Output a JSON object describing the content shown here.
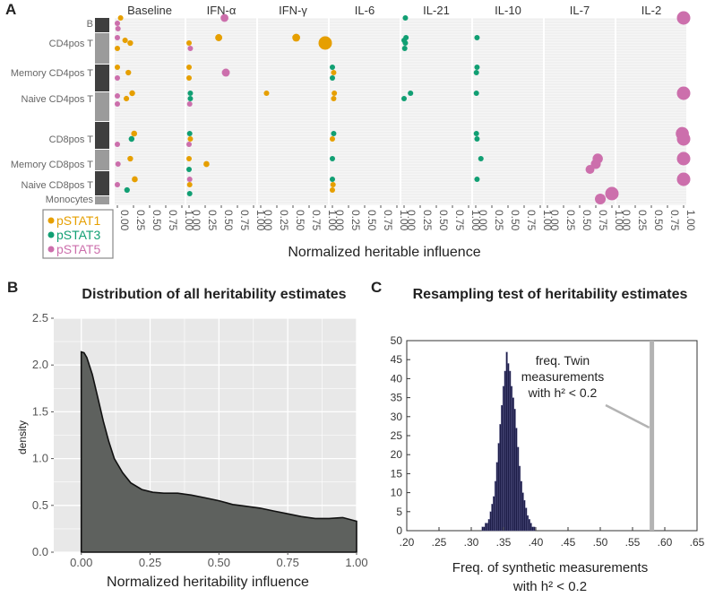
{
  "chart_data": [
    {
      "panel": "A",
      "type": "scatter",
      "facets": [
        "Baseline",
        "IFN-α",
        "IFN-γ",
        "IL-6",
        "IL-21",
        "IL-10",
        "IL-7",
        "IL-2"
      ],
      "cell_types": [
        "B",
        "CD4pos T",
        "Memory CD4pos T",
        "Naive CD4pos T",
        "CD8pos T",
        "Memory CD8pos T",
        "Naive CD8pos T",
        "Monocytes"
      ],
      "xlabel": "Normalized heritable influence",
      "xticks": [
        "0.00",
        "0.25",
        "0.50",
        "0.75",
        "1.00"
      ],
      "xlim": [
        0,
        1
      ],
      "legend": [
        {
          "name": "pSTAT1",
          "color": "#E69F00"
        },
        {
          "name": "pSTAT3",
          "color": "#119F73"
        },
        {
          "name": "pSTAT5",
          "color": "#CC6FAC"
        }
      ],
      "points": [
        {
          "facet": 0,
          "cell": 0,
          "series": "pSTAT1",
          "x": 0.05
        },
        {
          "facet": 0,
          "cell": 0,
          "series": "pSTAT5",
          "x": 0.0
        },
        {
          "facet": 0,
          "cell": 0,
          "series": "pSTAT5",
          "x": 0.01
        },
        {
          "facet": 0,
          "cell": 1,
          "series": "pSTAT5",
          "x": 0.0
        },
        {
          "facet": 0,
          "cell": 1,
          "series": "pSTAT1",
          "x": 0.2
        },
        {
          "facet": 0,
          "cell": 1,
          "series": "pSTAT1",
          "x": 0.0
        },
        {
          "facet": 0,
          "cell": 1,
          "series": "pSTAT1",
          "x": 0.12
        },
        {
          "facet": 0,
          "cell": 2,
          "series": "pSTAT1",
          "x": 0.0
        },
        {
          "facet": 0,
          "cell": 2,
          "series": "pSTAT1",
          "x": 0.17
        },
        {
          "facet": 0,
          "cell": 2,
          "series": "pSTAT5",
          "x": 0.0
        },
        {
          "facet": 0,
          "cell": 3,
          "series": "pSTAT1",
          "x": 0.23
        },
        {
          "facet": 0,
          "cell": 3,
          "series": "pSTAT1",
          "x": 0.14
        },
        {
          "facet": 0,
          "cell": 3,
          "series": "pSTAT5",
          "x": 0.0
        },
        {
          "facet": 0,
          "cell": 3,
          "series": "pSTAT5",
          "x": 0.0
        },
        {
          "facet": 0,
          "cell": 4,
          "series": "pSTAT1",
          "x": 0.26
        },
        {
          "facet": 0,
          "cell": 4,
          "series": "pSTAT3",
          "x": 0.22
        },
        {
          "facet": 0,
          "cell": 4,
          "series": "pSTAT5",
          "x": 0.0
        },
        {
          "facet": 0,
          "cell": 5,
          "series": "pSTAT1",
          "x": 0.2
        },
        {
          "facet": 0,
          "cell": 5,
          "series": "pSTAT5",
          "x": 0.01
        },
        {
          "facet": 0,
          "cell": 6,
          "series": "pSTAT1",
          "x": 0.27
        },
        {
          "facet": 0,
          "cell": 6,
          "series": "pSTAT5",
          "x": 0.0
        },
        {
          "facet": 0,
          "cell": 6,
          "series": "pSTAT3",
          "x": 0.15
        },
        {
          "facet": 1,
          "cell": 0,
          "series": "pSTAT5",
          "x": 0.55
        },
        {
          "facet": 1,
          "cell": 1,
          "series": "pSTAT1",
          "x": 0.46
        },
        {
          "facet": 1,
          "cell": 1,
          "series": "pSTAT1",
          "x": 0.0
        },
        {
          "facet": 1,
          "cell": 1,
          "series": "pSTAT5",
          "x": 0.02
        },
        {
          "facet": 1,
          "cell": 2,
          "series": "pSTAT1",
          "x": 0.0
        },
        {
          "facet": 1,
          "cell": 2,
          "series": "pSTAT5",
          "x": 0.57
        },
        {
          "facet": 1,
          "cell": 2,
          "series": "pSTAT1",
          "x": 0.0
        },
        {
          "facet": 1,
          "cell": 3,
          "series": "pSTAT3",
          "x": 0.02
        },
        {
          "facet": 1,
          "cell": 3,
          "series": "pSTAT3",
          "x": 0.02
        },
        {
          "facet": 1,
          "cell": 3,
          "series": "pSTAT5",
          "x": 0.01
        },
        {
          "facet": 1,
          "cell": 4,
          "series": "pSTAT3",
          "x": 0.01
        },
        {
          "facet": 1,
          "cell": 4,
          "series": "pSTAT1",
          "x": 0.02
        },
        {
          "facet": 1,
          "cell": 4,
          "series": "pSTAT5",
          "x": 0.0
        },
        {
          "facet": 1,
          "cell": 5,
          "series": "pSTAT1",
          "x": 0.0
        },
        {
          "facet": 1,
          "cell": 5,
          "series": "pSTAT1",
          "x": 0.27
        },
        {
          "facet": 1,
          "cell": 5,
          "series": "pSTAT3",
          "x": 0.0
        },
        {
          "facet": 1,
          "cell": 6,
          "series": "pSTAT5",
          "x": 0.01
        },
        {
          "facet": 1,
          "cell": 6,
          "series": "pSTAT1",
          "x": 0.01
        },
        {
          "facet": 1,
          "cell": 7,
          "series": "pSTAT3",
          "x": 0.01
        },
        {
          "facet": 2,
          "cell": 1,
          "series": "pSTAT1",
          "x": 0.55
        },
        {
          "facet": 2,
          "cell": 1,
          "series": "pSTAT1",
          "x": 1.0
        },
        {
          "facet": 2,
          "cell": 3,
          "series": "pSTAT1",
          "x": 0.09
        },
        {
          "facet": 3,
          "cell": 2,
          "series": "pSTAT3",
          "x": 0.0
        },
        {
          "facet": 3,
          "cell": 2,
          "series": "pSTAT1",
          "x": 0.02
        },
        {
          "facet": 3,
          "cell": 2,
          "series": "pSTAT3",
          "x": 0.0
        },
        {
          "facet": 3,
          "cell": 3,
          "series": "pSTAT1",
          "x": 0.03
        },
        {
          "facet": 3,
          "cell": 3,
          "series": "pSTAT1",
          "x": 0.02
        },
        {
          "facet": 3,
          "cell": 4,
          "series": "pSTAT3",
          "x": 0.02
        },
        {
          "facet": 3,
          "cell": 4,
          "series": "pSTAT1",
          "x": 0.0
        },
        {
          "facet": 3,
          "cell": 5,
          "series": "pSTAT3",
          "x": 0.0
        },
        {
          "facet": 3,
          "cell": 6,
          "series": "pSTAT3",
          "x": 0.0
        },
        {
          "facet": 3,
          "cell": 6,
          "series": "pSTAT1",
          "x": 0.01
        },
        {
          "facet": 3,
          "cell": 6,
          "series": "pSTAT1",
          "x": 0.0
        },
        {
          "facet": 4,
          "cell": 0,
          "series": "pSTAT3",
          "x": 0.02
        },
        {
          "facet": 4,
          "cell": 1,
          "series": "pSTAT3",
          "x": 0.03
        },
        {
          "facet": 4,
          "cell": 1,
          "series": "pSTAT3",
          "x": 0.02
        },
        {
          "facet": 4,
          "cell": 1,
          "series": "pSTAT3",
          "x": 0.01
        },
        {
          "facet": 4,
          "cell": 1,
          "series": "pSTAT3",
          "x": 0.0
        },
        {
          "facet": 4,
          "cell": 3,
          "series": "pSTAT3",
          "x": 0.1
        },
        {
          "facet": 4,
          "cell": 3,
          "series": "pSTAT3",
          "x": 0.0
        },
        {
          "facet": 5,
          "cell": 1,
          "series": "pSTAT3",
          "x": 0.02
        },
        {
          "facet": 5,
          "cell": 2,
          "series": "pSTAT3",
          "x": 0.02
        },
        {
          "facet": 5,
          "cell": 2,
          "series": "pSTAT3",
          "x": 0.01
        },
        {
          "facet": 5,
          "cell": 3,
          "series": "pSTAT3",
          "x": 0.01
        },
        {
          "facet": 5,
          "cell": 4,
          "series": "pSTAT3",
          "x": 0.01
        },
        {
          "facet": 5,
          "cell": 4,
          "series": "pSTAT3",
          "x": 0.02
        },
        {
          "facet": 5,
          "cell": 5,
          "series": "pSTAT3",
          "x": 0.08
        },
        {
          "facet": 5,
          "cell": 6,
          "series": "pSTAT3",
          "x": 0.02
        },
        {
          "facet": 6,
          "cell": 5,
          "series": "pSTAT5",
          "x": 0.78
        },
        {
          "facet": 6,
          "cell": 5,
          "series": "pSTAT5",
          "x": 0.75
        },
        {
          "facet": 6,
          "cell": 5,
          "series": "pSTAT5",
          "x": 0.66
        },
        {
          "facet": 6,
          "cell": 7,
          "series": "pSTAT5",
          "x": 1.0
        },
        {
          "facet": 6,
          "cell": 7,
          "series": "pSTAT5",
          "x": 0.82
        },
        {
          "facet": 7,
          "cell": 0,
          "series": "pSTAT5",
          "x": 1.0
        },
        {
          "facet": 7,
          "cell": 3,
          "series": "pSTAT5",
          "x": 1.0
        },
        {
          "facet": 7,
          "cell": 4,
          "series": "pSTAT5",
          "x": 0.98
        },
        {
          "facet": 7,
          "cell": 4,
          "series": "pSTAT5",
          "x": 1.0
        },
        {
          "facet": 7,
          "cell": 5,
          "series": "pSTAT5",
          "x": 1.0
        },
        {
          "facet": 7,
          "cell": 6,
          "series": "pSTAT5",
          "x": 1.0
        }
      ]
    },
    {
      "panel": "B",
      "type": "area",
      "title": "Distribution of all heritability estimates",
      "xlabel": "Normalized heritability influence",
      "ylabel": "density",
      "xlim": [
        -0.1,
        1.0
      ],
      "ylim": [
        0,
        2.5
      ],
      "xticks": [
        "0.00",
        "0.25",
        "0.50",
        "0.75",
        "1.00"
      ],
      "yticks": [
        "0.0",
        "0.5",
        "1.0",
        "1.5",
        "2.0",
        "2.5"
      ],
      "fill": "#5e615e",
      "background": "#e8e8e8",
      "x": [
        0.0,
        0.01,
        0.02,
        0.04,
        0.06,
        0.08,
        0.1,
        0.12,
        0.15,
        0.18,
        0.22,
        0.26,
        0.3,
        0.35,
        0.4,
        0.45,
        0.5,
        0.55,
        0.6,
        0.65,
        0.7,
        0.75,
        0.8,
        0.85,
        0.9,
        0.95,
        1.0
      ],
      "y": [
        2.14,
        2.13,
        2.08,
        1.9,
        1.65,
        1.4,
        1.18,
        1.0,
        0.85,
        0.74,
        0.67,
        0.64,
        0.63,
        0.63,
        0.61,
        0.58,
        0.55,
        0.51,
        0.49,
        0.47,
        0.44,
        0.41,
        0.38,
        0.36,
        0.36,
        0.37,
        0.33
      ]
    },
    {
      "panel": "C",
      "type": "bar",
      "title": "Resampling test of heritability estimates",
      "xlabel_line1": "Freq. of synthetic measurements",
      "xlabel_line2": "with h² < 0.2",
      "xlim": [
        0.2,
        0.65
      ],
      "ylim": [
        0,
        50
      ],
      "xticks": [
        ".20",
        ".25",
        ".30",
        ".35",
        ".40",
        ".45",
        ".50",
        ".55",
        ".60",
        ".65"
      ],
      "yticks": [
        "0",
        "5",
        "10",
        "15",
        "20",
        "25",
        "30",
        "35",
        "40",
        "45",
        "50"
      ],
      "bar_color": "#1d1d48",
      "bin_width": 0.0025,
      "x": [
        0.3175,
        0.32,
        0.3225,
        0.325,
        0.3275,
        0.33,
        0.3325,
        0.335,
        0.3375,
        0.34,
        0.3425,
        0.345,
        0.3475,
        0.35,
        0.3525,
        0.355,
        0.3575,
        0.36,
        0.3625,
        0.365,
        0.3675,
        0.37,
        0.3725,
        0.375,
        0.3775,
        0.38,
        0.3825,
        0.385,
        0.3875,
        0.39,
        0.3925,
        0.395,
        0.3975
      ],
      "values": [
        1,
        1,
        2,
        2,
        3,
        5,
        7,
        9,
        13,
        18,
        23,
        28,
        33,
        38,
        42,
        47,
        44,
        42,
        38,
        35,
        32,
        27,
        22,
        17,
        13,
        10,
        8,
        6,
        4,
        3,
        2,
        1,
        1
      ],
      "reference_line": {
        "x": 0.58,
        "color": "#b3b3b3"
      },
      "annotation_lines": [
        "freq. Twin",
        "measurements",
        "with h² < 0.2"
      ]
    }
  ]
}
